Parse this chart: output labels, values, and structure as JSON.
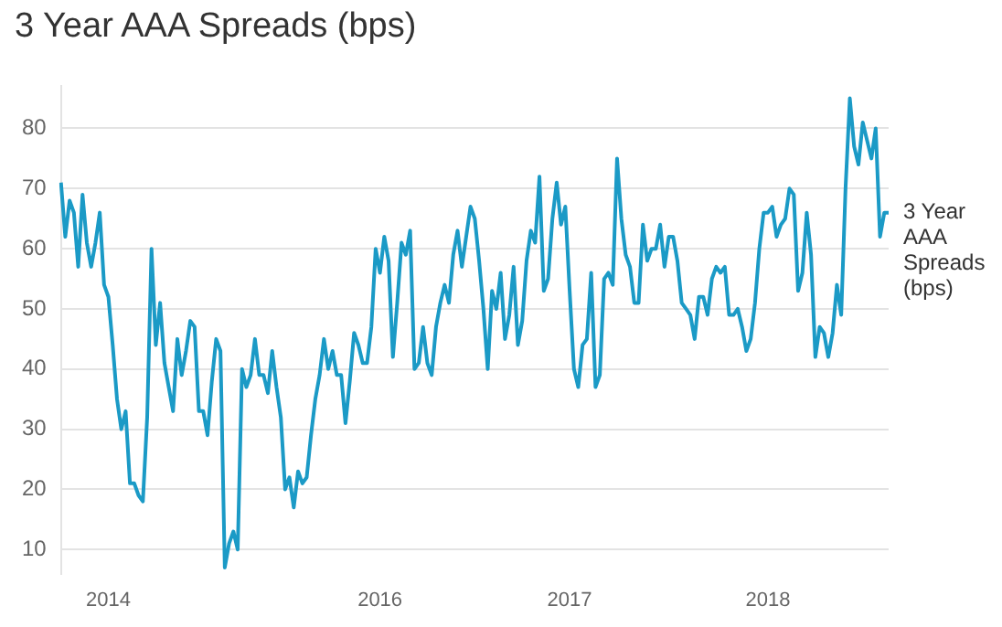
{
  "chart_data": {
    "type": "line",
    "title": "3 Year AAA Spreads (bps)",
    "categories": [
      null,
      null,
      null,
      null,
      null,
      null,
      null,
      null,
      null,
      null,
      null,
      "2014",
      null,
      null,
      null,
      null,
      null,
      null,
      null,
      null,
      null,
      null,
      null,
      null,
      null,
      null,
      null,
      null,
      null,
      null,
      null,
      null,
      null,
      null,
      null,
      null,
      null,
      null,
      null,
      null,
      null,
      null,
      null,
      null,
      null,
      null,
      null,
      null,
      null,
      null,
      null,
      null,
      null,
      null,
      null,
      null,
      null,
      null,
      null,
      null,
      null,
      null,
      null,
      null,
      null,
      null,
      null,
      null,
      null,
      null,
      null,
      null,
      null,
      null,
      "2016",
      null,
      null,
      null,
      null,
      null,
      null,
      null,
      null,
      null,
      null,
      null,
      null,
      null,
      null,
      null,
      null,
      null,
      null,
      null,
      null,
      null,
      null,
      null,
      null,
      null,
      null,
      null,
      null,
      null,
      null,
      null,
      null,
      null,
      null,
      null,
      null,
      null,
      null,
      null,
      null,
      null,
      null,
      null,
      "2017",
      null,
      null,
      null,
      null,
      null,
      null,
      null,
      null,
      null,
      null,
      null,
      null,
      null,
      null,
      null,
      null,
      null,
      null,
      null,
      null,
      null,
      null,
      null,
      null,
      null,
      null,
      null,
      null,
      null,
      null,
      null,
      null,
      null,
      null,
      null,
      null,
      null,
      null,
      null,
      null,
      null,
      null,
      null,
      null,
      null,
      "2018",
      null,
      null,
      null,
      null,
      null,
      null,
      null,
      null,
      null,
      null,
      null,
      null,
      null,
      null,
      null,
      null,
      null,
      null,
      null,
      null,
      null,
      null,
      null,
      null,
      null,
      null,
      null,
      null
    ],
    "series": [
      {
        "name": "3 Year AAA Spreads (bps)",
        "color": "#1b9ac6",
        "values": [
          71,
          62,
          68,
          66,
          57,
          69,
          61,
          57,
          61,
          66,
          54,
          52,
          44,
          35,
          30,
          33,
          21,
          21,
          19,
          18,
          32,
          60,
          44,
          51,
          41,
          37,
          33,
          45,
          39,
          43,
          48,
          47,
          33,
          33,
          29,
          38,
          45,
          43,
          7,
          11,
          13,
          10,
          40,
          37,
          39,
          45,
          39,
          39,
          36,
          43,
          37,
          32,
          20,
          22,
          17,
          23,
          21,
          22,
          29,
          35,
          39,
          45,
          40,
          43,
          39,
          39,
          31,
          38,
          46,
          44,
          41,
          41,
          47,
          60,
          56,
          62,
          58,
          42,
          51,
          61,
          59,
          63,
          40,
          41,
          47,
          41,
          39,
          47,
          51,
          54,
          51,
          59,
          63,
          57,
          62,
          67,
          65,
          58,
          50,
          40,
          53,
          50,
          56,
          45,
          49,
          57,
          44,
          48,
          58,
          63,
          61,
          72,
          53,
          55,
          65,
          71,
          64,
          67,
          53,
          40,
          37,
          44,
          45,
          56,
          37,
          39,
          55,
          56,
          54,
          75,
          65,
          59,
          57,
          51,
          51,
          64,
          58,
          60,
          60,
          64,
          57,
          62,
          62,
          58,
          51,
          50,
          49,
          45,
          52,
          52,
          49,
          55,
          57,
          56,
          57,
          49,
          49,
          50,
          47,
          43,
          45,
          51,
          60,
          66,
          66,
          67,
          62,
          64,
          65,
          70,
          69,
          53,
          56,
          66,
          59,
          42,
          47,
          46,
          42,
          46,
          54,
          49,
          70,
          85,
          77,
          74,
          81,
          78,
          75,
          80,
          62,
          66,
          66
        ]
      }
    ],
    "ylim": [
      6,
      87
    ],
    "yticks": [
      10,
      20,
      30,
      40,
      50,
      60,
      70,
      80
    ],
    "grid": "y",
    "legend": false
  }
}
